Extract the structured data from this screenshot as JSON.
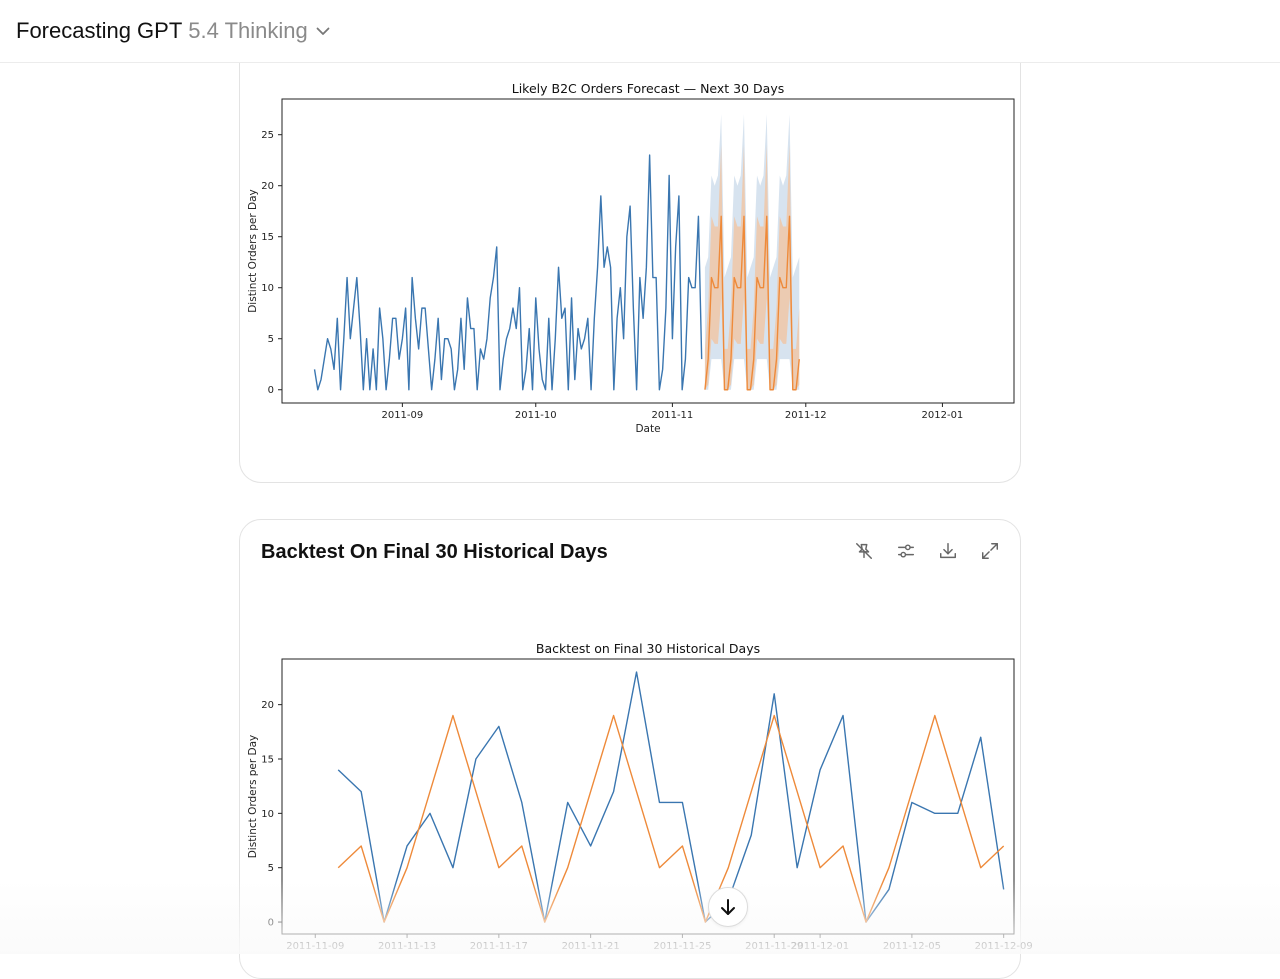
{
  "header": {
    "model_name": "Forecasting GPT",
    "model_version": "5.4 Thinking"
  },
  "card2": {
    "title": "Backtest On Final 30 Historical Days"
  },
  "icons": {
    "chevron": "chevron-down-icon",
    "tools": [
      "pin-off-icon",
      "sliders-icon",
      "download-icon",
      "expand-icon"
    ],
    "scroll": "arrow-down-icon"
  },
  "colors": {
    "actual": "#3a76b0",
    "forecast": "#ee8a3a",
    "band_outer": "#d7e3ef",
    "band_inner": "#f0c7a7"
  },
  "chart_data": [
    {
      "type": "line",
      "title": "Likely B2C Orders Forecast — Next 30 Days",
      "xlabel": "Date",
      "ylabel": "Distinct Orders per Day",
      "ylim": [
        -1.3,
        28.5
      ],
      "yticks": [
        0,
        5,
        10,
        15,
        20,
        25
      ],
      "xlim": [
        -30,
        195
      ],
      "xticks": [
        {
          "label": "2011-09",
          "x": 7
        },
        {
          "label": "2011-10",
          "x": 48
        },
        {
          "label": "2011-11",
          "x": 90
        },
        {
          "label": "2011-12",
          "x": 131
        },
        {
          "label": "2012-01",
          "x": 173
        }
      ],
      "series": [
        {
          "name": "Actual",
          "x_start": -20,
          "values": [
            2,
            0,
            1,
            3,
            5,
            4,
            2,
            7,
            0,
            5,
            11,
            5,
            8,
            11,
            6,
            0,
            5,
            0,
            4,
            0,
            8,
            5,
            0,
            3,
            7,
            7,
            3,
            5,
            8,
            0,
            11,
            7,
            4,
            8,
            8,
            4,
            0,
            3,
            7,
            1,
            5,
            5,
            4,
            0,
            2,
            7,
            2,
            9,
            6,
            6,
            0,
            4,
            3,
            5,
            9,
            11,
            14,
            0,
            3,
            5,
            6,
            8,
            6,
            10,
            0,
            2,
            6,
            0,
            9,
            4,
            1,
            0,
            7,
            0,
            5,
            12,
            7,
            8,
            0,
            9,
            1,
            6,
            4,
            5,
            7,
            0,
            7,
            12,
            19,
            12,
            14,
            12,
            0,
            7,
            10,
            5,
            15,
            18,
            8,
            0,
            11,
            7,
            12,
            23,
            11,
            11,
            0,
            2,
            8,
            21,
            5,
            14,
            19,
            0,
            3,
            11,
            10,
            10,
            17,
            3
          ]
        },
        {
          "name": "Forecast",
          "x_start": 100,
          "values": [
            0,
            3,
            11,
            10,
            10,
            17,
            0,
            0,
            3,
            11,
            10,
            10,
            17,
            0,
            0,
            3,
            11,
            10,
            10,
            17,
            0,
            0,
            3,
            11,
            10,
            10,
            17,
            0,
            0,
            3
          ],
          "band_inner": {
            "lower": [
              0,
              0.5,
              5,
              4.5,
              4.5,
              9,
              0,
              0,
              0.5,
              5,
              4.5,
              4.5,
              9,
              0,
              0,
              0.5,
              5,
              4.5,
              4.5,
              9,
              0,
              0,
              0.5,
              5,
              4.5,
              4.5,
              9,
              0,
              0,
              0.5
            ],
            "upper": [
              4,
              8,
              17,
              16,
              16,
              24,
              4,
              4,
              8,
              17,
              16,
              16,
              24,
              4,
              4,
              8,
              17,
              16,
              16,
              24,
              4,
              4,
              8,
              17,
              16,
              16,
              24,
              4,
              4,
              8
            ]
          },
          "band_outer": {
            "lower": [
              0,
              0,
              3,
              3,
              3,
              3,
              0,
              0,
              0,
              3,
              3,
              3,
              3,
              0,
              0,
              0,
              3,
              3,
              3,
              3,
              0,
              0,
              0,
              3,
              3,
              3,
              3,
              0,
              0,
              0
            ],
            "upper": [
              12,
              13,
              21,
              20,
              21,
              27,
              11,
              12,
              13,
              21,
              20,
              21,
              27,
              11,
              12,
              13,
              21,
              20,
              21,
              27,
              11,
              12,
              13,
              21,
              20,
              21,
              27,
              11,
              12,
              13
            ]
          }
        }
      ]
    },
    {
      "type": "line",
      "title": "Backtest on Final 30 Historical Days",
      "xlabel": "",
      "ylabel": "Distinct Orders per Day",
      "ylim": [
        -1.1,
        24.2
      ],
      "yticks": [
        0,
        5,
        10,
        15,
        20
      ],
      "xlim": [
        -1.45,
        30.45
      ],
      "xticks": [
        {
          "label": "2011-11-09",
          "x": 0
        },
        {
          "label": "2011-11-13",
          "x": 4
        },
        {
          "label": "2011-11-17",
          "x": 8
        },
        {
          "label": "2011-11-21",
          "x": 12
        },
        {
          "label": "2011-11-25",
          "x": 16
        },
        {
          "label": "2011-11-29",
          "x": 20
        },
        {
          "label": "2011-12-01",
          "x": 22
        },
        {
          "label": "2011-12-05",
          "x": 26
        },
        {
          "label": "2011-12-09",
          "x": 30
        }
      ],
      "series": [
        {
          "name": "Actual",
          "x_start": 1,
          "values": [
            14,
            12,
            0,
            7,
            10,
            5,
            15,
            18,
            11,
            0,
            11,
            7,
            12,
            23,
            11,
            11,
            0,
            2,
            8,
            21,
            5,
            14,
            19,
            0,
            3,
            11,
            10,
            10,
            17,
            3
          ]
        },
        {
          "name": "Forecast",
          "x_start": 1,
          "values": [
            5,
            7,
            0,
            5,
            12,
            19,
            12,
            5,
            7,
            0,
            5,
            12,
            19,
            12,
            5,
            7,
            0,
            5,
            12,
            19,
            12,
            5,
            7,
            0,
            5,
            12,
            19,
            12,
            5,
            7
          ]
        }
      ]
    }
  ]
}
